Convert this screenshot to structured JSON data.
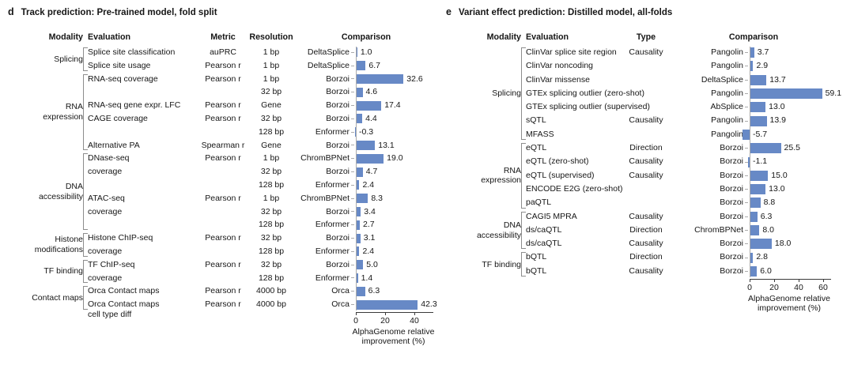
{
  "colors": {
    "bar": "#6789c6",
    "axis": "#3a3a3a",
    "spine": "#ababab",
    "bracket": "#8d8d8d",
    "text": "#161616"
  },
  "chart_data": [
    {
      "type": "bar",
      "orientation": "horizontal",
      "panel_letter": "d",
      "title": "Track prediction: Pre-trained model, fold split",
      "headers": {
        "modality": "Modality",
        "evaluation": "Evaluation",
        "metric": "Metric",
        "resolution": "Resolution",
        "comparison": "Comparison"
      },
      "xlabel": "AlphaGenome relative improvement (%)",
      "xlabel_lines": [
        "AlphaGenome relative",
        "improvement (%)"
      ],
      "xticks": [
        0,
        20,
        40
      ],
      "xlim": [
        -2,
        46
      ],
      "grid": false,
      "bar_color": "#6789c6",
      "groups": [
        {
          "modality": "Splicing",
          "rows": [
            {
              "evaluation": "Splice site classification",
              "metric": "auPRC",
              "resolution": "1 bp",
              "comparison": "DeltaSplice",
              "value": 1.0,
              "label": "1.0"
            },
            {
              "evaluation": "Splice site usage",
              "metric": "Pearson r",
              "resolution": "1 bp",
              "comparison": "DeltaSplice",
              "value": 6.7,
              "label": "6.7"
            }
          ]
        },
        {
          "modality": "RNA\nexpression",
          "rows": [
            {
              "evaluation": "RNA-seq coverage",
              "metric": "Pearson r",
              "resolution": "1 bp",
              "comparison": "Borzoi",
              "value": 32.6,
              "label": "32.6"
            },
            {
              "evaluation": "",
              "metric": "",
              "resolution": "32 bp",
              "comparison": "Borzoi",
              "value": 4.6,
              "label": "4.6"
            },
            {
              "evaluation": "RNA-seq gene expr. LFC",
              "metric": "Pearson r",
              "resolution": "Gene",
              "comparison": "Borzoi",
              "value": 17.4,
              "label": "17.4"
            },
            {
              "evaluation": "CAGE coverage",
              "metric": "Pearson r",
              "resolution": "32 bp",
              "comparison": "Borzoi",
              "value": 4.4,
              "label": "4.4"
            },
            {
              "evaluation": "",
              "metric": "",
              "resolution": "128 bp",
              "comparison": "Enformer",
              "value": -0.3,
              "label": "-0.3"
            },
            {
              "evaluation": "Alternative PA",
              "metric": "Spearman r",
              "resolution": "Gene",
              "comparison": "Borzoi",
              "value": 13.1,
              "label": "13.1"
            }
          ]
        },
        {
          "modality": "DNA\naccessibility",
          "rows": [
            {
              "evaluation": "DNase-seq",
              "metric": "Pearson r",
              "resolution": "1 bp",
              "comparison": "ChromBPNet",
              "value": 19.0,
              "label": "19.0"
            },
            {
              "evaluation": "coverage",
              "metric": "",
              "resolution": "32 bp",
              "comparison": "Borzoi",
              "value": 4.7,
              "label": "4.7"
            },
            {
              "evaluation": "",
              "metric": "",
              "resolution": "128 bp",
              "comparison": "Enformer",
              "value": 2.4,
              "label": "2.4"
            },
            {
              "evaluation": "ATAC-seq",
              "metric": "Pearson r",
              "resolution": "1 bp",
              "comparison": "ChromBPNet",
              "value": 8.3,
              "label": "8.3"
            },
            {
              "evaluation": "coverage",
              "metric": "",
              "resolution": "32 bp",
              "comparison": "Borzoi",
              "value": 3.4,
              "label": "3.4"
            },
            {
              "evaluation": "",
              "metric": "",
              "resolution": "128 bp",
              "comparison": "Enformer",
              "value": 2.7,
              "label": "2.7"
            }
          ]
        },
        {
          "modality": "Histone\nmodifications",
          "rows": [
            {
              "evaluation": "Histone ChIP-seq",
              "metric": "Pearson r",
              "resolution": "32 bp",
              "comparison": "Borzoi",
              "value": 3.1,
              "label": "3.1"
            },
            {
              "evaluation": "coverage",
              "metric": "",
              "resolution": "128 bp",
              "comparison": "Enformer",
              "value": 2.4,
              "label": "2.4"
            }
          ]
        },
        {
          "modality": "TF binding",
          "rows": [
            {
              "evaluation": "TF ChIP-seq",
              "metric": "Pearson r",
              "resolution": "32 bp",
              "comparison": "Borzoi",
              "value": 5.0,
              "label": "5.0"
            },
            {
              "evaluation": "coverage",
              "metric": "",
              "resolution": "128 bp",
              "comparison": "Enformer",
              "value": 1.4,
              "label": "1.4"
            }
          ]
        },
        {
          "modality": "Contact maps",
          "rows": [
            {
              "evaluation": "Orca Contact maps",
              "metric": "Pearson r",
              "resolution": "4000 bp",
              "comparison": "Orca",
              "value": 6.3,
              "label": "6.3"
            },
            {
              "evaluation": "Orca Contact maps\ncell type diff",
              "metric": "Pearson r",
              "resolution": "4000 bp",
              "comparison": "Orca",
              "value": 42.3,
              "label": "42.3"
            }
          ]
        }
      ]
    },
    {
      "type": "bar",
      "orientation": "horizontal",
      "panel_letter": "e",
      "title": "Variant effect prediction: Distilled model, all-folds",
      "headers": {
        "modality": "Modality",
        "evaluation": "Evaluation",
        "variant_type": "Type",
        "comparison": "Comparison"
      },
      "xlabel": "AlphaGenome relative improvement (%)",
      "xlabel_lines": [
        "AlphaGenome relative",
        "improvement (%)"
      ],
      "xticks": [
        0,
        20,
        40,
        60
      ],
      "xlim": [
        -7,
        65
      ],
      "grid": false,
      "bar_color": "#6789c6",
      "groups": [
        {
          "modality": "Splicing",
          "rows": [
            {
              "evaluation": "ClinVar splice site region",
              "variant_type": "Causality",
              "comparison": "Pangolin",
              "value": 3.7,
              "label": "3.7"
            },
            {
              "evaluation": "ClinVar noncoding",
              "variant_type": "",
              "comparison": "Pangolin",
              "value": 2.9,
              "label": "2.9"
            },
            {
              "evaluation": "ClinVar missense",
              "variant_type": "",
              "comparison": "DeltaSplice",
              "value": 13.7,
              "label": "13.7"
            },
            {
              "evaluation": "GTEx splicing outlier (zero-shot)",
              "variant_type": "",
              "comparison": "Pangolin",
              "value": 59.1,
              "label": "59.1"
            },
            {
              "evaluation": "GTEx splicing outlier (supervised)",
              "variant_type": "",
              "comparison": "AbSplice",
              "value": 13.0,
              "label": "13.0"
            },
            {
              "evaluation": "sQTL",
              "variant_type": "Causality",
              "comparison": "Pangolin",
              "value": 13.9,
              "label": "13.9"
            },
            {
              "evaluation": "MFASS",
              "variant_type": "",
              "comparison": "Pangolin",
              "value": -5.7,
              "label": "-5.7"
            }
          ]
        },
        {
          "modality": "RNA\nexpression",
          "rows": [
            {
              "evaluation": "eQTL",
              "variant_type": "Direction",
              "comparison": "Borzoi",
              "value": 25.5,
              "label": "25.5"
            },
            {
              "evaluation": "eQTL (zero-shot)",
              "variant_type": "Causality",
              "comparison": "Borzoi",
              "value": -1.1,
              "label": "-1.1"
            },
            {
              "evaluation": "eQTL (supervised)",
              "variant_type": "Causality",
              "comparison": "Borzoi",
              "value": 15.0,
              "label": "15.0"
            },
            {
              "evaluation": "ENCODE E2G (zero-shot)",
              "variant_type": "",
              "comparison": "Borzoi",
              "value": 13.0,
              "label": "13.0"
            },
            {
              "evaluation": "paQTL",
              "variant_type": "",
              "comparison": "Borzoi",
              "value": 8.8,
              "label": "8.8"
            }
          ]
        },
        {
          "modality": "DNA\naccessibility",
          "rows": [
            {
              "evaluation": "CAGI5 MPRA",
              "variant_type": "Causality",
              "comparison": "Borzoi",
              "value": 6.3,
              "label": "6.3"
            },
            {
              "evaluation": "ds/caQTL",
              "variant_type": "Direction",
              "comparison": "ChromBPNet",
              "value": 8.0,
              "label": "8.0"
            },
            {
              "evaluation": "ds/caQTL",
              "variant_type": "Causality",
              "comparison": "Borzoi",
              "value": 18.0,
              "label": "18.0"
            }
          ]
        },
        {
          "modality": "TF binding",
          "rows": [
            {
              "evaluation": "bQTL",
              "variant_type": "Direction",
              "comparison": "Borzoi",
              "value": 2.8,
              "label": "2.8"
            },
            {
              "evaluation": "bQTL",
              "variant_type": "Causality",
              "comparison": "Borzoi",
              "value": 6.0,
              "label": "6.0"
            }
          ]
        }
      ]
    }
  ]
}
